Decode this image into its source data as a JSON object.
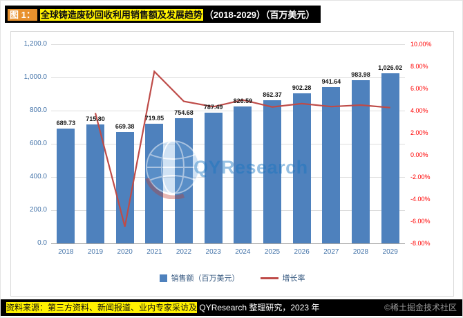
{
  "header": {
    "figure_label": "图 1：",
    "title": "全球铸造废砂回收利用销售额及发展趋势",
    "title_suffix": "（2018-2029）（百万美元）"
  },
  "chart_data": {
    "type": "bar+line",
    "title": "全球铸造废砂回收利用销售额及发展趋势（2018-2029）（百万美元）",
    "categories": [
      "2018",
      "2019",
      "2020",
      "2021",
      "2022",
      "2023",
      "2024",
      "2025",
      "2026",
      "2027",
      "2028",
      "2029"
    ],
    "series": [
      {
        "name": "销售额（百万美元）",
        "type": "bar",
        "axis": "left",
        "color": "#4E81BD",
        "values": [
          689.73,
          715.8,
          669.38,
          719.85,
          754.68,
          787.49,
          826.59,
          862.37,
          902.28,
          941.64,
          983.98,
          1026.02
        ],
        "labels": [
          "689.73",
          "715.80",
          "669.38",
          "719.85",
          "754.68",
          "787.49",
          "826.59",
          "862.37",
          "902.28",
          "941.64",
          "983.98",
          "1,026.02"
        ]
      },
      {
        "name": "增长率",
        "type": "line",
        "axis": "right",
        "color": "#BE4B48",
        "start_index": 1,
        "values": [
          3.78,
          -6.49,
          7.54,
          4.84,
          4.35,
          4.96,
          4.33,
          4.63,
          4.36,
          4.5,
          4.27
        ]
      }
    ],
    "left_axis": {
      "min": 0,
      "max": 1200,
      "step": 200,
      "labels_top_to_bottom": [
        "1,200.0",
        "1,000.0",
        "800.0",
        "600.0",
        "400.0",
        "200.0",
        "0.0"
      ]
    },
    "right_axis": {
      "min": -8,
      "max": 10,
      "step": 2,
      "labels_top_to_bottom": [
        "10.00%",
        "8.00%",
        "6.00%",
        "4.00%",
        "2.00%",
        "0.00%",
        "-2.00%",
        "-4.00%",
        "-6.00%",
        "-8.00%"
      ]
    },
    "grid": true,
    "legend_position": "bottom"
  },
  "watermark": {
    "text": "QYResearch"
  },
  "footer": {
    "source_highlight": "资料来源：第三方资料、新闻报道、业内专家采访及",
    "source_rest": " QYResearch 整理研究，2023 年",
    "credit": "©稀土掘金技术社区"
  }
}
